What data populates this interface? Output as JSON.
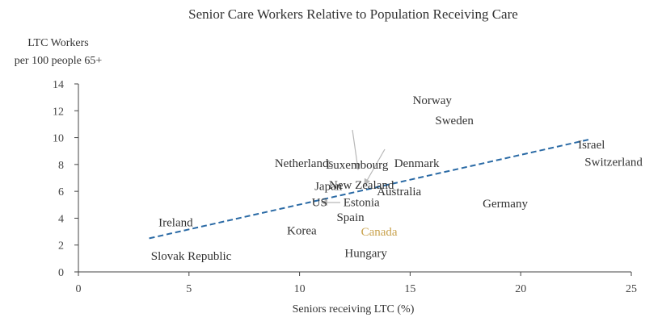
{
  "chart_data": {
    "type": "scatter",
    "title": "Senior Care Workers Relative to Population Receiving Care",
    "ylabel_line1": "LTC Workers",
    "ylabel_line2": "per 100 people 65+",
    "xlabel": "Seniors receiving LTC (%)",
    "xlim": [
      0,
      25
    ],
    "ylim": [
      0,
      14
    ],
    "xticks": [
      0,
      5,
      10,
      15,
      20,
      25
    ],
    "yticks": [
      0,
      2,
      4,
      6,
      8,
      10,
      12,
      14
    ],
    "grid": false,
    "highlight_color": "#c9a24d",
    "trend_color": "#2a6aa5",
    "points": [
      {
        "label": "Norway",
        "x": 16.0,
        "y": 12.8
      },
      {
        "label": "Sweden",
        "x": 17.0,
        "y": 11.3
      },
      {
        "label": "Luxembourg",
        "x": 12.6,
        "y": 8.0
      },
      {
        "label": "New Zealand",
        "x": 12.8,
        "y": 6.5
      },
      {
        "label": "Israel",
        "x": 23.2,
        "y": 9.5
      },
      {
        "label": "Switzerland",
        "x": 24.2,
        "y": 8.2
      },
      {
        "label": "Netherlands",
        "x": 10.2,
        "y": 8.1
      },
      {
        "label": "Denmark",
        "x": 15.3,
        "y": 8.1
      },
      {
        "label": "Japan",
        "x": 11.3,
        "y": 6.4
      },
      {
        "label": "Australia",
        "x": 14.5,
        "y": 6.0
      },
      {
        "label": "US",
        "x": 10.9,
        "y": 5.2
      },
      {
        "label": "Estonia",
        "x": 12.8,
        "y": 5.2
      },
      {
        "label": "Germany",
        "x": 19.3,
        "y": 5.1
      },
      {
        "label": "Spain",
        "x": 12.3,
        "y": 4.1
      },
      {
        "label": "Canada",
        "x": 13.6,
        "y": 3.0,
        "highlight": true
      },
      {
        "label": "Korea",
        "x": 10.1,
        "y": 3.1
      },
      {
        "label": "Ireland",
        "x": 4.4,
        "y": 3.7
      },
      {
        "label": "Hungary",
        "x": 13.0,
        "y": 1.4
      },
      {
        "label": "Slovak Republic",
        "x": 5.1,
        "y": 1.2
      }
    ],
    "trendline": {
      "x": [
        3.2,
        23.2
      ],
      "y": [
        2.5,
        9.9
      ]
    }
  }
}
